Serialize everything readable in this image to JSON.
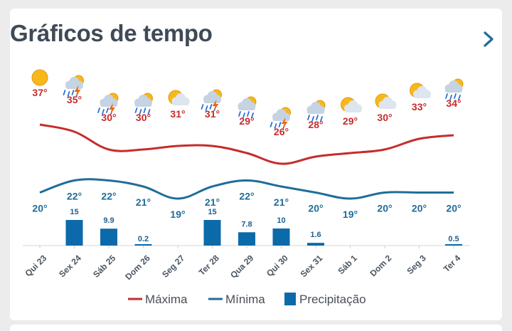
{
  "widget": {
    "title": "Gráficos de tempo",
    "next_icon": "chevron-right-icon"
  },
  "colors": {
    "max": "#c62c2c",
    "min": "#1f6d98",
    "precip": "#0d6aaa",
    "title": "#3f4a56"
  },
  "chart_data": {
    "type": "line",
    "categories": [
      "Qui 23",
      "Sex 24",
      "Sáb 25",
      "Dom 26",
      "Seg 27",
      "Ter 28",
      "Qua 29",
      "Qui 30",
      "Sex 31",
      "Sáb 1",
      "Dom 2",
      "Seg 3",
      "Ter 4"
    ],
    "icons": [
      "sun-icon",
      "thunderstorm-icon",
      "thunderstorm-icon",
      "rain-icon",
      "partly-cloudy-icon",
      "thunderstorm-icon",
      "rain-icon",
      "thunderstorm-icon",
      "rain-icon",
      "partly-cloudy-icon",
      "partly-cloudy-icon",
      "partly-cloudy-icon",
      "rain-icon"
    ],
    "series": [
      {
        "name": "Máxima",
        "values": [
          37,
          35,
          30,
          30,
          31,
          31,
          29,
          26,
          28,
          29,
          30,
          33,
          34
        ],
        "labels": [
          "37°",
          "35°",
          "30°",
          "30°",
          "31°",
          "31°",
          "29°",
          "26°",
          "28°",
          "29°",
          "30°",
          "33°",
          "34°"
        ]
      },
      {
        "name": "Mínima",
        "values": [
          20,
          22,
          22,
          21,
          19,
          21,
          22,
          21,
          20,
          19,
          20,
          20,
          20
        ],
        "labels": [
          "20°",
          "22°",
          "22°",
          "21°",
          "19°",
          "21°",
          "22°",
          "21°",
          "20°",
          "19°",
          "20°",
          "20°",
          "20°"
        ]
      },
      {
        "name": "Precipitação",
        "type": "bar",
        "values": [
          0,
          15,
          9.9,
          0.2,
          0,
          15,
          7.8,
          10,
          1.6,
          0,
          0,
          0,
          0.5
        ],
        "labels": [
          "",
          "15",
          "9.9",
          "0.2",
          "",
          "15",
          "7.8",
          "10",
          "1.6",
          "",
          "",
          "",
          "0.5"
        ]
      }
    ],
    "legend": [
      "Máxima",
      "Mínima",
      "Precipitação"
    ],
    "legend_position": "bottom"
  }
}
